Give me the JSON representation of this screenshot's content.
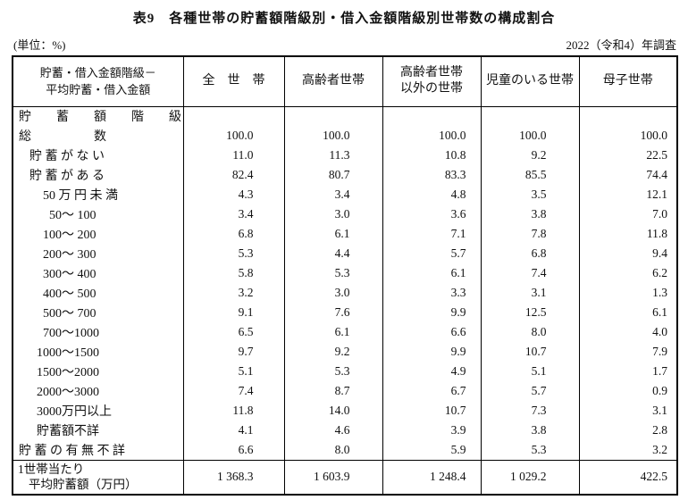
{
  "title": "表9　各種世帯の貯蓄額階級別・借入金額階級別世帯数の構成割合",
  "unit_note": "(単位：%)",
  "survey_note": "2022（令和4）年調査",
  "table": {
    "corner_header_lines": [
      "貯蓄・借入金額階級－",
      "平均貯蓄・借入金額"
    ],
    "column_headers": [
      {
        "lines": [
          "全　世　帯"
        ]
      },
      {
        "lines": [
          "高齢者世帯"
        ]
      },
      {
        "lines": [
          "高齢者世帯",
          "以外の世帯"
        ]
      },
      {
        "lines": [
          "児童のいる世帯"
        ]
      },
      {
        "lines": [
          "母子世帯"
        ]
      }
    ],
    "rows": [
      {
        "label": "貯　　蓄　　額　　階　　級",
        "level": 0,
        "values": [
          "",
          "",
          "",
          "",
          ""
        ]
      },
      {
        "label": "総　　　　　数",
        "level": 0,
        "values": [
          "100.0",
          "100.0",
          "100.0",
          "100.0",
          "100.0"
        ]
      },
      {
        "label": "貯 蓄 が な い",
        "level": 1,
        "values": [
          "11.0",
          "11.3",
          "10.8",
          "9.2",
          "22.5"
        ]
      },
      {
        "label": "貯 蓄 が あ る",
        "level": 1,
        "values": [
          "82.4",
          "80.7",
          "83.3",
          "85.5",
          "74.4"
        ]
      },
      {
        "label": "50 万 円 未 満",
        "level": 3,
        "values": [
          "4.3",
          "3.4",
          "4.8",
          "3.5",
          "12.1"
        ]
      },
      {
        "label": "50～ 100",
        "level": 4,
        "values": [
          "3.4",
          "3.0",
          "3.6",
          "3.8",
          "7.0"
        ]
      },
      {
        "label": "100～ 200",
        "level": 3,
        "values": [
          "6.8",
          "6.1",
          "7.1",
          "7.8",
          "11.8"
        ]
      },
      {
        "label": "200～ 300",
        "level": 3,
        "values": [
          "5.3",
          "4.4",
          "5.7",
          "6.8",
          "9.4"
        ]
      },
      {
        "label": "300～ 400",
        "level": 3,
        "values": [
          "5.8",
          "5.3",
          "6.1",
          "7.4",
          "6.2"
        ]
      },
      {
        "label": "400～ 500",
        "level": 3,
        "values": [
          "3.2",
          "3.0",
          "3.3",
          "3.1",
          "1.3"
        ]
      },
      {
        "label": "500～ 700",
        "level": 3,
        "values": [
          "9.1",
          "7.6",
          "9.9",
          "12.5",
          "6.1"
        ]
      },
      {
        "label": "700～1000",
        "level": 3,
        "values": [
          "6.5",
          "6.1",
          "6.6",
          "8.0",
          "4.0"
        ]
      },
      {
        "label": "1000～1500",
        "level": 2,
        "values": [
          "9.7",
          "9.2",
          "9.9",
          "10.7",
          "7.9"
        ]
      },
      {
        "label": "1500～2000",
        "level": 2,
        "values": [
          "5.1",
          "5.3",
          "4.9",
          "5.1",
          "1.7"
        ]
      },
      {
        "label": "2000～3000",
        "level": 2,
        "values": [
          "7.4",
          "8.7",
          "6.7",
          "5.7",
          "0.9"
        ]
      },
      {
        "label": "3000万円以上",
        "level": 2,
        "values": [
          "11.8",
          "14.0",
          "10.7",
          "7.3",
          "3.1"
        ]
      },
      {
        "label": "貯蓄額不詳",
        "level": 2,
        "values": [
          "4.1",
          "4.6",
          "3.9",
          "3.8",
          "2.8"
        ]
      },
      {
        "label": "貯 蓄 の 有 無 不 詳",
        "level": 0,
        "values": [
          "6.6",
          "8.0",
          "5.9",
          "5.3",
          "3.2"
        ]
      }
    ],
    "footer": {
      "label_lines": [
        "1世帯当たり",
        "平均貯蓄額（万円）"
      ],
      "values": [
        "1 368.3",
        "1 603.9",
        "1 248.4",
        "1 029.2",
        "422.5"
      ]
    }
  }
}
